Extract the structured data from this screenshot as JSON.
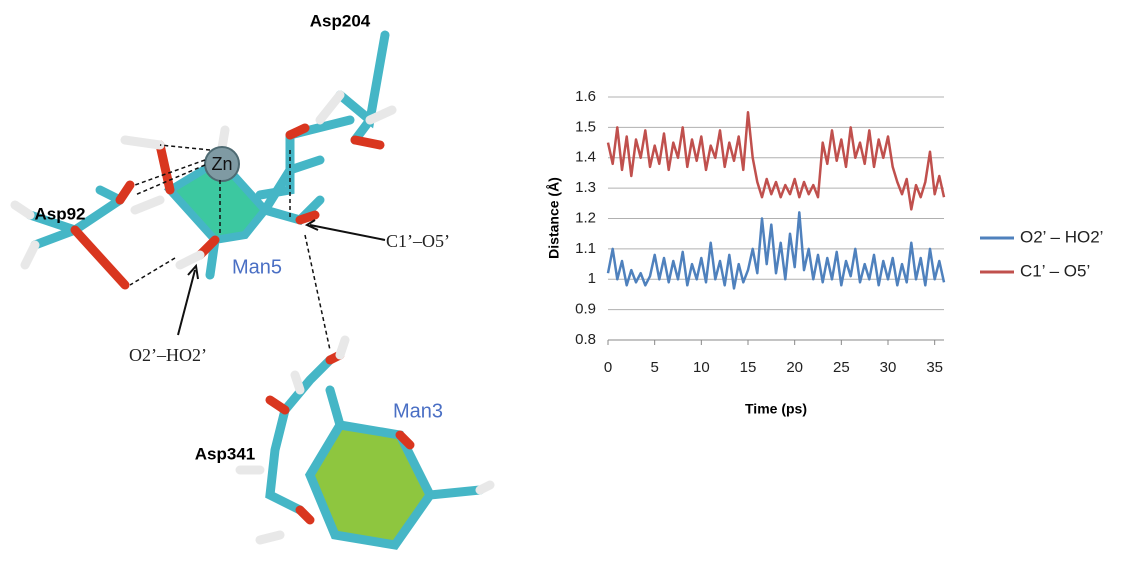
{
  "molecule": {
    "labels": [
      "Asp204",
      "Asp92",
      "Zn",
      "Man5",
      "C1’–O5’",
      "O2’–HO2’",
      "Man3",
      "Asp341"
    ]
  },
  "chart_data": {
    "type": "line",
    "x_label": "Time (ps)",
    "y_label": "Distance (Å)",
    "x": [
      0,
      0.5,
      1,
      1.5,
      2,
      2.5,
      3,
      3.5,
      4,
      4.5,
      5,
      5.5,
      6,
      6.5,
      7,
      7.5,
      8,
      8.5,
      9,
      9.5,
      10,
      10.5,
      11,
      11.5,
      12,
      12.5,
      13,
      13.5,
      14,
      14.5,
      15,
      15.5,
      16,
      16.5,
      17,
      17.5,
      18,
      18.5,
      19,
      19.5,
      20,
      20.5,
      21,
      21.5,
      22,
      22.5,
      23,
      23.5,
      24,
      24.5,
      25,
      25.5,
      26,
      26.5,
      27,
      27.5,
      28,
      28.5,
      29,
      29.5,
      30,
      30.5,
      31,
      31.5,
      32,
      32.5,
      33,
      33.5,
      34,
      34.5,
      35,
      35.5,
      36
    ],
    "series": [
      {
        "name": "O2’ – HO2’",
        "color": "#4f81bd",
        "values": [
          1.02,
          1.1,
          1.0,
          1.06,
          0.98,
          1.03,
          0.99,
          1.02,
          0.98,
          1.01,
          1.08,
          1.0,
          1.07,
          0.99,
          1.06,
          1.0,
          1.09,
          0.98,
          1.05,
          1.0,
          1.07,
          0.99,
          1.12,
          1.0,
          1.06,
          0.98,
          1.08,
          0.97,
          1.05,
          0.99,
          1.03,
          1.1,
          1.02,
          1.2,
          1.05,
          1.18,
          1.02,
          1.12,
          1.0,
          1.15,
          1.04,
          1.22,
          1.03,
          1.1,
          1.0,
          1.08,
          0.99,
          1.07,
          1.0,
          1.09,
          0.98,
          1.06,
          1.01,
          1.1,
          0.99,
          1.05,
          1.0,
          1.08,
          0.98,
          1.06,
          1.0,
          1.07,
          0.98,
          1.05,
          0.99,
          1.12,
          1.0,
          1.07,
          0.98,
          1.1,
          1.0,
          1.06,
          0.99
        ]
      },
      {
        "name": "C1’ – O5’",
        "color": "#c0504d",
        "values": [
          1.45,
          1.38,
          1.5,
          1.36,
          1.47,
          1.34,
          1.46,
          1.4,
          1.49,
          1.37,
          1.44,
          1.38,
          1.48,
          1.36,
          1.45,
          1.4,
          1.5,
          1.37,
          1.46,
          1.39,
          1.47,
          1.36,
          1.44,
          1.4,
          1.49,
          1.37,
          1.45,
          1.39,
          1.47,
          1.36,
          1.55,
          1.4,
          1.32,
          1.27,
          1.33,
          1.28,
          1.32,
          1.27,
          1.31,
          1.28,
          1.33,
          1.27,
          1.32,
          1.28,
          1.31,
          1.27,
          1.45,
          1.38,
          1.49,
          1.39,
          1.46,
          1.37,
          1.5,
          1.4,
          1.45,
          1.38,
          1.49,
          1.37,
          1.46,
          1.4,
          1.47,
          1.37,
          1.32,
          1.28,
          1.33,
          1.23,
          1.31,
          1.27,
          1.32,
          1.42,
          1.28,
          1.34,
          1.27
        ]
      }
    ],
    "xlim": [
      0,
      36
    ],
    "xticks": [
      0,
      5,
      10,
      15,
      20,
      25,
      30,
      35
    ],
    "ylim": [
      0.8,
      1.6
    ],
    "yticks": [
      0.8,
      0.9,
      1,
      1.1,
      1.2,
      1.3,
      1.4,
      1.5,
      1.6
    ],
    "grid": true,
    "legend": "right"
  }
}
